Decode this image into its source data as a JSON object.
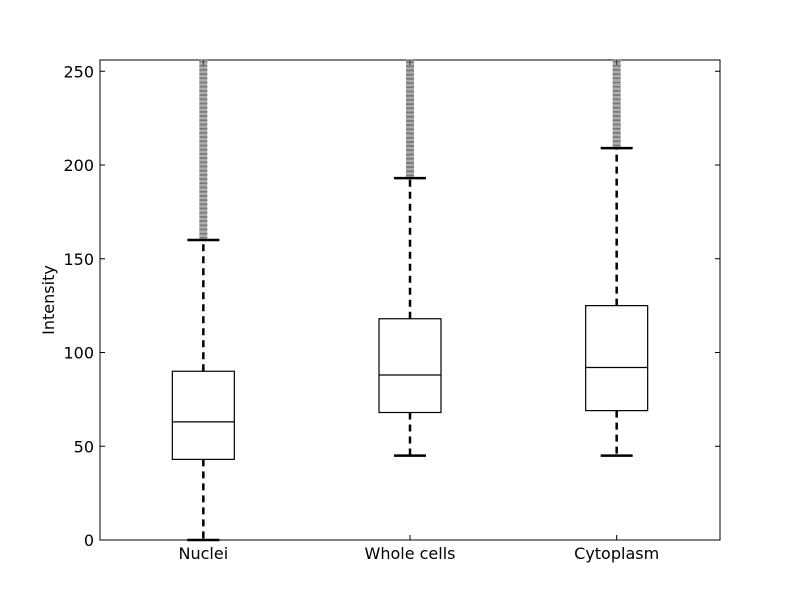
{
  "chart_data": {
    "type": "boxplot",
    "title": "",
    "xlabel": "",
    "ylabel": "Intensity",
    "ylim": [
      0,
      256
    ],
    "yticks": [
      0,
      50,
      100,
      150,
      200,
      250
    ],
    "categories": [
      "Nuclei",
      "Whole cells",
      "Cytoplasm"
    ],
    "boxes": [
      {
        "category": "Nuclei",
        "whisker_low": 0,
        "q1": 43,
        "median": 63,
        "q3": 90,
        "whisker_high": 160,
        "outliers_range": [
          160,
          256
        ]
      },
      {
        "category": "Whole cells",
        "whisker_low": 45,
        "q1": 68,
        "median": 88,
        "q3": 118,
        "whisker_high": 193,
        "outliers_range": [
          193,
          256
        ]
      },
      {
        "category": "Cytoplasm",
        "whisker_low": 45,
        "q1": 69,
        "median": 92,
        "q3": 125,
        "whisker_high": 209,
        "outliers_range": [
          209,
          256
        ]
      }
    ],
    "grid": false,
    "legend": "none"
  }
}
